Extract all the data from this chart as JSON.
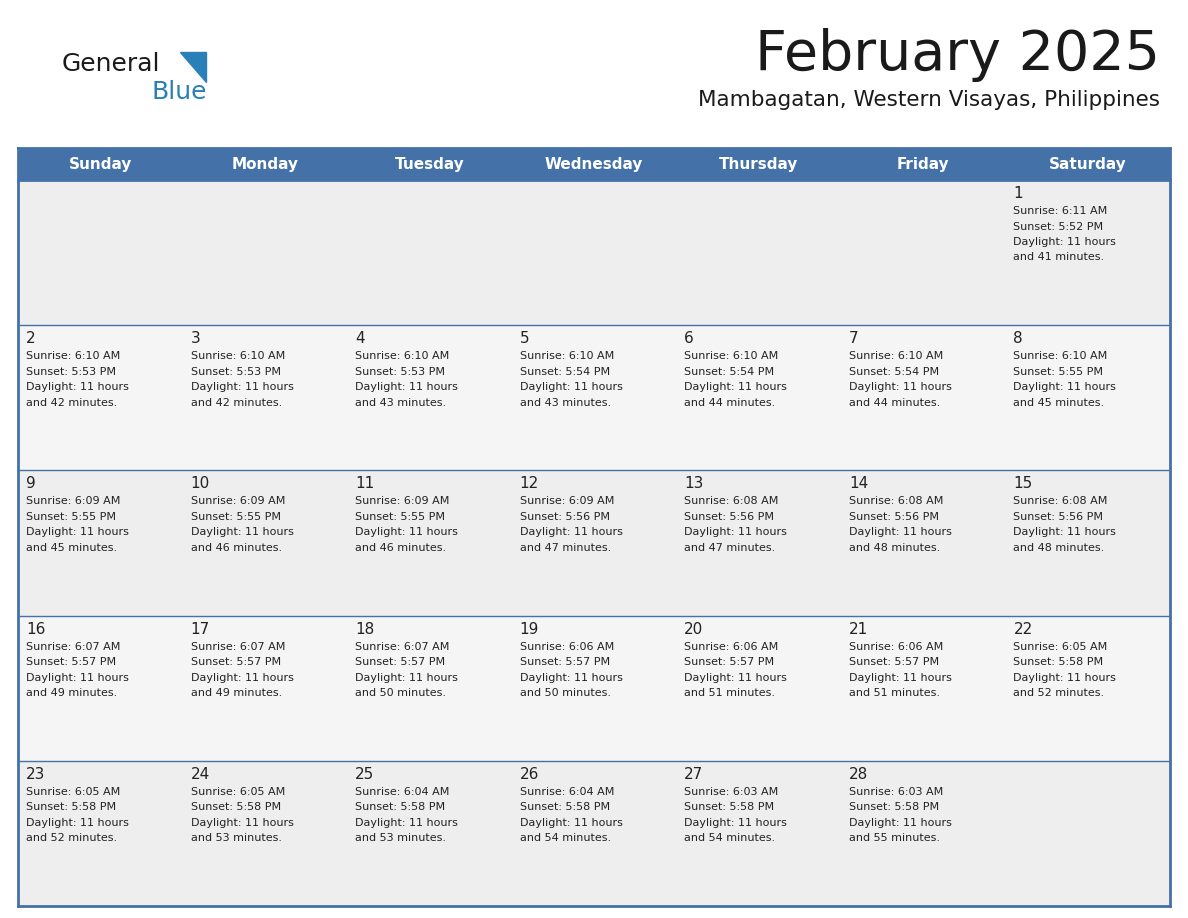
{
  "title": "February 2025",
  "subtitle": "Mambagatan, Western Visayas, Philippines",
  "header_color": "#4472a8",
  "header_text_color": "#ffffff",
  "day_names": [
    "Sunday",
    "Monday",
    "Tuesday",
    "Wednesday",
    "Thursday",
    "Friday",
    "Saturday"
  ],
  "background_color": "#ffffff",
  "cell_bg_row0": "#eeeeee",
  "cell_bg_row1": "#f5f5f5",
  "cell_bg_row2": "#eeeeee",
  "cell_bg_row3": "#f5f5f5",
  "cell_bg_row4": "#eeeeee",
  "border_color": "#4472a8",
  "text_color": "#222222",
  "days": [
    {
      "day": 1,
      "col": 6,
      "row": 0,
      "sunrise": "6:11 AM",
      "sunset": "5:52 PM",
      "daylight": "11 hours and 41 minutes."
    },
    {
      "day": 2,
      "col": 0,
      "row": 1,
      "sunrise": "6:10 AM",
      "sunset": "5:53 PM",
      "daylight": "11 hours and 42 minutes."
    },
    {
      "day": 3,
      "col": 1,
      "row": 1,
      "sunrise": "6:10 AM",
      "sunset": "5:53 PM",
      "daylight": "11 hours and 42 minutes."
    },
    {
      "day": 4,
      "col": 2,
      "row": 1,
      "sunrise": "6:10 AM",
      "sunset": "5:53 PM",
      "daylight": "11 hours and 43 minutes."
    },
    {
      "day": 5,
      "col": 3,
      "row": 1,
      "sunrise": "6:10 AM",
      "sunset": "5:54 PM",
      "daylight": "11 hours and 43 minutes."
    },
    {
      "day": 6,
      "col": 4,
      "row": 1,
      "sunrise": "6:10 AM",
      "sunset": "5:54 PM",
      "daylight": "11 hours and 44 minutes."
    },
    {
      "day": 7,
      "col": 5,
      "row": 1,
      "sunrise": "6:10 AM",
      "sunset": "5:54 PM",
      "daylight": "11 hours and 44 minutes."
    },
    {
      "day": 8,
      "col": 6,
      "row": 1,
      "sunrise": "6:10 AM",
      "sunset": "5:55 PM",
      "daylight": "11 hours and 45 minutes."
    },
    {
      "day": 9,
      "col": 0,
      "row": 2,
      "sunrise": "6:09 AM",
      "sunset": "5:55 PM",
      "daylight": "11 hours and 45 minutes."
    },
    {
      "day": 10,
      "col": 1,
      "row": 2,
      "sunrise": "6:09 AM",
      "sunset": "5:55 PM",
      "daylight": "11 hours and 46 minutes."
    },
    {
      "day": 11,
      "col": 2,
      "row": 2,
      "sunrise": "6:09 AM",
      "sunset": "5:55 PM",
      "daylight": "11 hours and 46 minutes."
    },
    {
      "day": 12,
      "col": 3,
      "row": 2,
      "sunrise": "6:09 AM",
      "sunset": "5:56 PM",
      "daylight": "11 hours and 47 minutes."
    },
    {
      "day": 13,
      "col": 4,
      "row": 2,
      "sunrise": "6:08 AM",
      "sunset": "5:56 PM",
      "daylight": "11 hours and 47 minutes."
    },
    {
      "day": 14,
      "col": 5,
      "row": 2,
      "sunrise": "6:08 AM",
      "sunset": "5:56 PM",
      "daylight": "11 hours and 48 minutes."
    },
    {
      "day": 15,
      "col": 6,
      "row": 2,
      "sunrise": "6:08 AM",
      "sunset": "5:56 PM",
      "daylight": "11 hours and 48 minutes."
    },
    {
      "day": 16,
      "col": 0,
      "row": 3,
      "sunrise": "6:07 AM",
      "sunset": "5:57 PM",
      "daylight": "11 hours and 49 minutes."
    },
    {
      "day": 17,
      "col": 1,
      "row": 3,
      "sunrise": "6:07 AM",
      "sunset": "5:57 PM",
      "daylight": "11 hours and 49 minutes."
    },
    {
      "day": 18,
      "col": 2,
      "row": 3,
      "sunrise": "6:07 AM",
      "sunset": "5:57 PM",
      "daylight": "11 hours and 50 minutes."
    },
    {
      "day": 19,
      "col": 3,
      "row": 3,
      "sunrise": "6:06 AM",
      "sunset": "5:57 PM",
      "daylight": "11 hours and 50 minutes."
    },
    {
      "day": 20,
      "col": 4,
      "row": 3,
      "sunrise": "6:06 AM",
      "sunset": "5:57 PM",
      "daylight": "11 hours and 51 minutes."
    },
    {
      "day": 21,
      "col": 5,
      "row": 3,
      "sunrise": "6:06 AM",
      "sunset": "5:57 PM",
      "daylight": "11 hours and 51 minutes."
    },
    {
      "day": 22,
      "col": 6,
      "row": 3,
      "sunrise": "6:05 AM",
      "sunset": "5:58 PM",
      "daylight": "11 hours and 52 minutes."
    },
    {
      "day": 23,
      "col": 0,
      "row": 4,
      "sunrise": "6:05 AM",
      "sunset": "5:58 PM",
      "daylight": "11 hours and 52 minutes."
    },
    {
      "day": 24,
      "col": 1,
      "row": 4,
      "sunrise": "6:05 AM",
      "sunset": "5:58 PM",
      "daylight": "11 hours and 53 minutes."
    },
    {
      "day": 25,
      "col": 2,
      "row": 4,
      "sunrise": "6:04 AM",
      "sunset": "5:58 PM",
      "daylight": "11 hours and 53 minutes."
    },
    {
      "day": 26,
      "col": 3,
      "row": 4,
      "sunrise": "6:04 AM",
      "sunset": "5:58 PM",
      "daylight": "11 hours and 54 minutes."
    },
    {
      "day": 27,
      "col": 4,
      "row": 4,
      "sunrise": "6:03 AM",
      "sunset": "5:58 PM",
      "daylight": "11 hours and 54 minutes."
    },
    {
      "day": 28,
      "col": 5,
      "row": 4,
      "sunrise": "6:03 AM",
      "sunset": "5:58 PM",
      "daylight": "11 hours and 55 minutes."
    }
  ],
  "num_rows": 5,
  "fig_width": 11.88,
  "fig_height": 9.18,
  "dpi": 100
}
